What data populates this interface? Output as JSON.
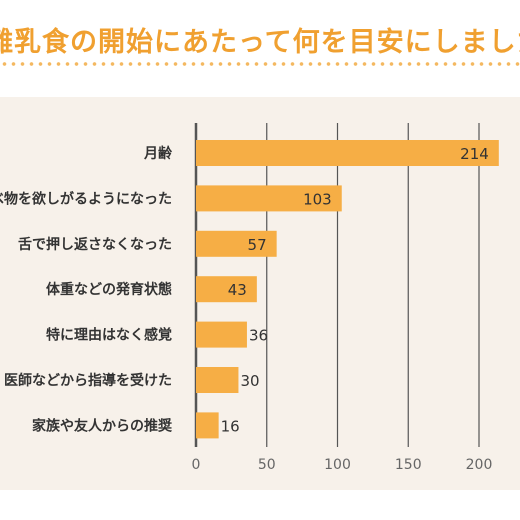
{
  "header": {
    "title": "離乳食の開始にあたって何を目安にしましたか"
  },
  "colors": {
    "accent": "#f0a030",
    "bar": "#f6ae45",
    "panel_bg": "#f7f1ea",
    "gridline": "#555555"
  },
  "chart_data": {
    "type": "bar",
    "orientation": "horizontal",
    "categories": [
      "月齢",
      "食べ物を欲しがるようになった",
      "舌で押し返さなくなった",
      "体重などの発育状態",
      "特に理由はなく感覚",
      "医師などから指導を受けた",
      "家族や友人からの推奨"
    ],
    "values": [
      214,
      103,
      57,
      43,
      36,
      30,
      16
    ],
    "xlim": [
      0,
      230
    ],
    "xticks": [
      0,
      50,
      100,
      150,
      200
    ],
    "grid": true
  }
}
